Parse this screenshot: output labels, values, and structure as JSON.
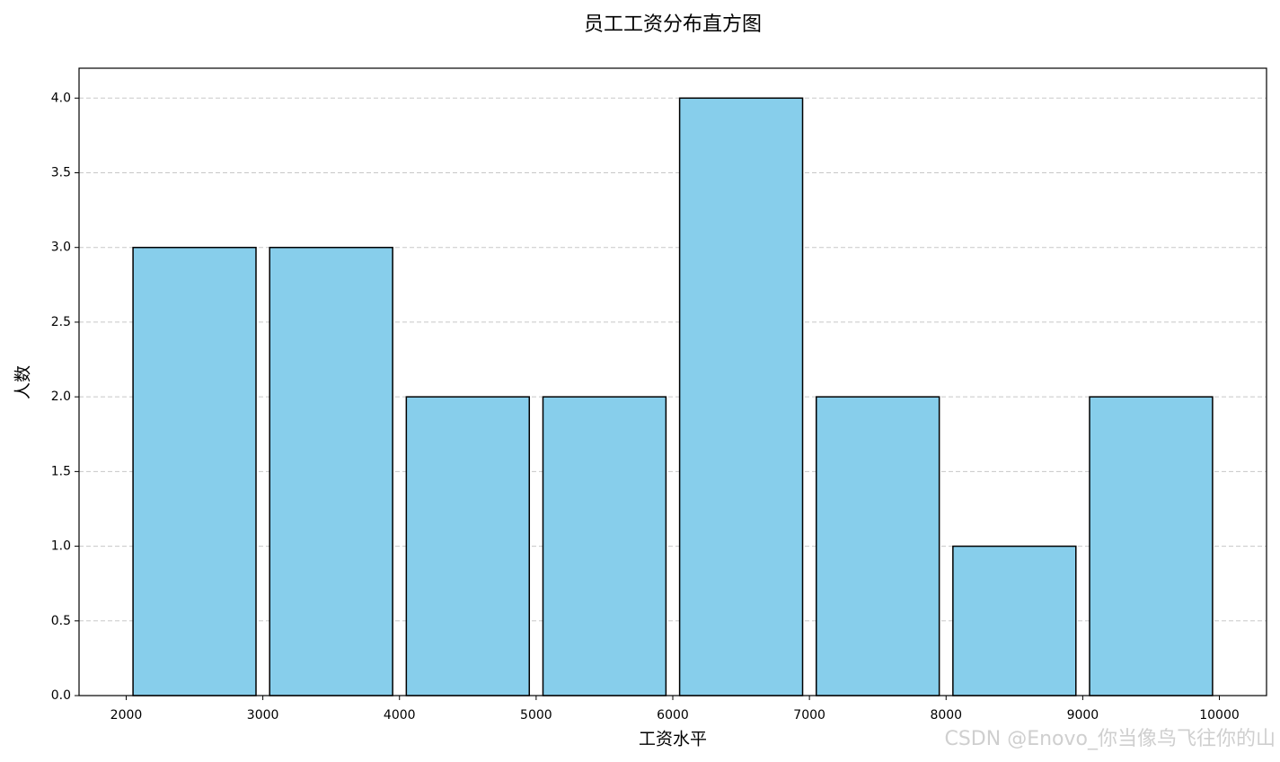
{
  "chart_data": {
    "type": "histogram",
    "title": "员工工资分布直方图",
    "xlabel": "工资水平",
    "ylabel": "人数",
    "bins": [
      2000,
      3000,
      4000,
      5000,
      6000,
      7000,
      8000,
      9000,
      10000
    ],
    "values": [
      3,
      3,
      2,
      2,
      4,
      2,
      1,
      2
    ],
    "color": "#87ceeb",
    "edgecolor": "#000000",
    "rwidth": 0.9,
    "xlim": [
      1655,
      10345
    ],
    "ylim": [
      0,
      4.2
    ],
    "xticks": [
      2000,
      3000,
      4000,
      5000,
      6000,
      7000,
      8000,
      9000,
      10000
    ],
    "yticks": [
      {
        "value": 0,
        "label": "0.0"
      },
      {
        "value": 0.5,
        "label": "0.5"
      },
      {
        "value": 1,
        "label": "1.0"
      },
      {
        "value": 1.5,
        "label": "1.5"
      },
      {
        "value": 2,
        "label": "2.0"
      },
      {
        "value": 2.5,
        "label": "2.5"
      },
      {
        "value": 3,
        "label": "3.0"
      },
      {
        "value": 3.5,
        "label": "3.5"
      },
      {
        "value": 4,
        "label": "4.0"
      }
    ],
    "grid": "y",
    "watermark": "CSDN @Enovo_你当像鸟飞往你的山"
  }
}
